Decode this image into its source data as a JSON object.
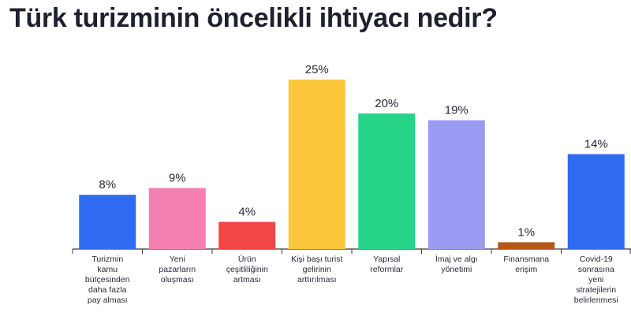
{
  "title": "Türk turizminin öncelikli ihtiyacı nedir?",
  "chart_data": {
    "type": "bar",
    "title": "Türk turizminin öncelikli ihtiyacı nedir?",
    "xlabel": "",
    "ylabel": "",
    "ylim": [
      0,
      25
    ],
    "grid": false,
    "legend": "none",
    "value_suffix": "%",
    "categories": [
      [
        "Turizmin",
        "kamu",
        "bütçesinden",
        "daha fazla",
        "pay alması"
      ],
      [
        "Yeni",
        "pazarların",
        "oluşması"
      ],
      [
        "Ürün",
        "çeşitliliğinin",
        "artması"
      ],
      [
        "Kişi başı turist",
        "gelirinin",
        "arttırılması"
      ],
      [
        "Yapısal",
        "reformlar"
      ],
      [
        "İmaj ve algı",
        "yönetimi"
      ],
      [
        "Finansmana",
        "erişim"
      ],
      [
        "Covid-19",
        "sonrasına",
        "yeni",
        "stratejilerin",
        "belirlenmesi"
      ]
    ],
    "values": [
      8,
      9,
      4,
      25,
      20,
      19,
      1,
      14
    ],
    "colors": [
      "#2f6bf0",
      "#f57fb0",
      "#f24545",
      "#fcc73d",
      "#27d487",
      "#9a9af2",
      "#b5571a",
      "#2f6bf0"
    ]
  }
}
